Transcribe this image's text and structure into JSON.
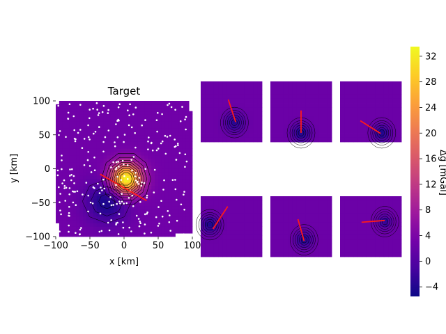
{
  "chart_data": [
    {
      "type": "heatmap",
      "title": "Target",
      "xlabel": "x [km]",
      "ylabel": "y [km]",
      "xlim": [
        -100,
        100
      ],
      "ylim": [
        -100,
        100
      ],
      "xticks": [
        "−100",
        "−50",
        "0",
        "50",
        "100"
      ],
      "yticks": [
        "100",
        "50",
        "0",
        "−50",
        "−100"
      ],
      "grid": false,
      "field": {
        "background": 3,
        "sources": [
          {
            "x": 3,
            "y": -15,
            "amplitude": 31,
            "sigma": 16
          },
          {
            "x": -25,
            "y": -48,
            "amplitude": -8,
            "sigma": 22
          }
        ]
      },
      "profile_line": {
        "x": [
          -35,
          33
        ],
        "y": [
          -8,
          -47
        ]
      },
      "station_count": 260
    },
    {
      "type": "heatmap",
      "panels": [
        {
          "row": 1,
          "col": 1,
          "anomaly": {
            "x": 0.55,
            "y": 0.68,
            "amplitude": 6,
            "sigma": 0.11
          },
          "line": [
            [
              0.45,
              0.3
            ],
            [
              0.57,
              0.67
            ]
          ]
        },
        {
          "row": 1,
          "col": 2,
          "anomaly": {
            "x": 0.5,
            "y": 0.85,
            "amplitude": 7,
            "sigma": 0.1
          },
          "line": [
            [
              0.5,
              0.48
            ],
            [
              0.5,
              0.85
            ]
          ]
        },
        {
          "row": 1,
          "col": 3,
          "anomaly": {
            "x": 0.68,
            "y": 0.85,
            "amplitude": 7,
            "sigma": 0.09
          },
          "line": [
            [
              0.33,
              0.65
            ],
            [
              0.66,
              0.86
            ]
          ]
        },
        {
          "row": 2,
          "col": 1,
          "anomaly": {
            "x": 0.15,
            "y": 0.47,
            "amplitude": 7,
            "sigma": 0.1
          },
          "line": [
            [
              0.44,
              0.17
            ],
            [
              0.2,
              0.54
            ]
          ]
        },
        {
          "row": 2,
          "col": 2,
          "anomaly": {
            "x": 0.55,
            "y": 0.72,
            "amplitude": 7,
            "sigma": 0.09
          },
          "line": [
            [
              0.45,
              0.38
            ],
            [
              0.55,
              0.74
            ]
          ]
        },
        {
          "row": 2,
          "col": 3,
          "anomaly": {
            "x": 0.73,
            "y": 0.42,
            "amplitude": 6,
            "sigma": 0.07
          },
          "line": [
            [
              0.35,
              0.43
            ],
            [
              0.73,
              0.4
            ]
          ]
        }
      ]
    },
    {
      "type": "colorbar",
      "label": "Δg [mGal]",
      "colormap": "plasma",
      "range": [
        -5.5,
        33.5
      ],
      "ticks": [
        32,
        28,
        24,
        20,
        16,
        12,
        8,
        4,
        0,
        -4
      ]
    }
  ],
  "colors": {
    "line": "#ff1a1a",
    "stations": "#ffffff",
    "contours": "#000000",
    "plasma": [
      "#0d0887",
      "#46039f",
      "#7201a8",
      "#9c179e",
      "#bd3786",
      "#d8576b",
      "#ed7953",
      "#fb9f3a",
      "#fdca26",
      "#f0f921"
    ]
  }
}
